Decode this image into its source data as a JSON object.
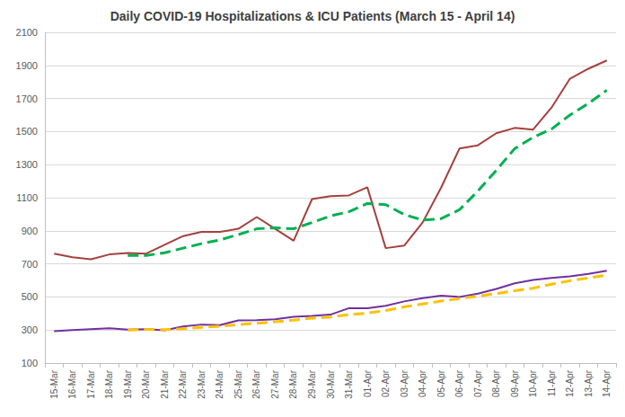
{
  "chart_data": {
    "type": "line",
    "title": "Daily COVID-19 Hospitalizations & ICU Patients (March 15 - April 14)",
    "categories": [
      "15-Mar",
      "16-Mar",
      "17-Mar",
      "18-Mar",
      "19-Mar",
      "20-Mar",
      "21-Mar",
      "22-Mar",
      "23-Mar",
      "24-Mar",
      "25-Mar",
      "26-Mar",
      "27-Mar",
      "28-Mar",
      "29-Mar",
      "30-Mar",
      "31-Mar",
      "01-Apr",
      "02-Apr",
      "03-Apr",
      "04-Apr",
      "05-Apr",
      "06-Apr",
      "07-Apr",
      "08-Apr",
      "09-Apr",
      "10-Apr",
      "11-Apr",
      "12-Apr",
      "13-Apr",
      "14-Apr"
    ],
    "series": [
      {
        "color": "#a5403d",
        "line_style": "solid",
        "values": [
          762,
          740,
          728,
          757,
          766,
          762,
          815,
          868,
          893,
          893,
          912,
          983,
          912,
          840,
          1092,
          1110,
          1114,
          1163,
          795,
          810,
          950,
          1160,
          1397,
          1417,
          1490,
          1522,
          1512,
          1645,
          1820,
          1880,
          1930
        ]
      },
      {
        "color": "#00b050",
        "line_style": "dashed",
        "values": [
          null,
          null,
          null,
          null,
          751,
          751,
          767,
          795,
          822,
          845,
          877,
          912,
          918,
          912,
          950,
          990,
          1015,
          1065,
          1058,
          998,
          965,
          973,
          1027,
          1140,
          1265,
          1397,
          1465,
          1515,
          1600,
          1670,
          1750
        ]
      },
      {
        "color": "#7030a0",
        "line_style": "solid",
        "values": [
          293,
          300,
          305,
          310,
          302,
          305,
          298,
          322,
          333,
          330,
          358,
          360,
          365,
          380,
          385,
          393,
          432,
          432,
          447,
          473,
          493,
          508,
          500,
          520,
          548,
          582,
          603,
          615,
          625,
          640,
          658
        ]
      },
      {
        "color": "#ffc000",
        "line_style": "dashed",
        "values": [
          null,
          null,
          null,
          null,
          300,
          304,
          302,
          308,
          316,
          323,
          333,
          341,
          350,
          360,
          372,
          378,
          393,
          402,
          418,
          440,
          457,
          475,
          490,
          505,
          520,
          537,
          553,
          577,
          598,
          615,
          632
        ]
      }
    ],
    "ylim": [
      100,
      2100
    ],
    "yticks": [
      100,
      300,
      500,
      700,
      900,
      1100,
      1300,
      1500,
      1700,
      1900,
      2100
    ],
    "grid": true
  }
}
